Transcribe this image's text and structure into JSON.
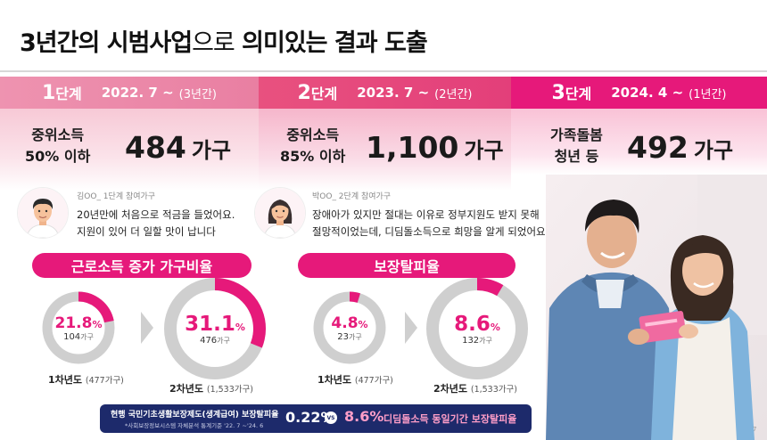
{
  "title": {
    "bold": "3년간의 시범사업",
    "light": "으로",
    "bold2": " 의미있는 결과 도출"
  },
  "stages": [
    {
      "num": "1",
      "sub": "단계",
      "date": "2022. 7 ~",
      "duration": "(3년간)",
      "cond_line1": "중위소득",
      "cond_pct": "50%",
      "cond_rest": " 이하",
      "count": "484",
      "unit": "가구",
      "color": "#ec8aa8"
    },
    {
      "num": "2",
      "sub": "단계",
      "date": "2023. 7 ~",
      "duration": "(2년간)",
      "cond_line1": "중위소득",
      "cond_pct": "85%",
      "cond_rest": " 이하",
      "count": "1,100",
      "unit": "가구",
      "color": "#e0457f"
    },
    {
      "num": "3",
      "sub": "단계",
      "date": "2024. 4 ~",
      "duration": "(1년간)",
      "cond_line1": "가족돌봄",
      "cond_line2": "청년 등",
      "count": "492",
      "unit": "가구",
      "color": "#e6197a"
    }
  ],
  "testimonials": [
    {
      "tag": "김OO_ 1단계 참여가구",
      "line1": "20년만에 처음으로 적금을 들었어요.",
      "line2": "지원이 있어 더 일할 맛이 납니다"
    },
    {
      "tag": "박OO_ 2단계 참여가구",
      "line1": "장애아가 있지만 절대는 이유로 정부지원도 받지 못해",
      "line2": "절망적이었는데, 디딤돌소득으로 희망을 알게 되었어요"
    }
  ],
  "sections": [
    {
      "label": "근로소득 증가 가구비율"
    },
    {
      "label": "보장탈피율"
    }
  ],
  "donuts": [
    {
      "pct_value": 21.8,
      "pct": "21.8",
      "sign": "%",
      "households": "104",
      "hh_unit": "가구",
      "year": "1차년도",
      "year_paren": "(477가구)"
    },
    {
      "pct_value": 31.1,
      "pct": "31.1",
      "sign": "%",
      "households": "476",
      "hh_unit": "가구",
      "year": "2차년도",
      "year_paren": "(1,533가구)"
    },
    {
      "pct_value": 4.8,
      "pct": "4.8",
      "sign": "%",
      "households": "23",
      "hh_unit": "가구",
      "year": "1차년도",
      "year_paren": "(477가구)"
    },
    {
      "pct_value": 8.6,
      "pct": "8.6",
      "sign": "%",
      "households": "132",
      "hh_unit": "가구",
      "year": "2차년도",
      "year_paren": "(1,533가구)"
    }
  ],
  "footer": {
    "line1": "현행 국민기초생활보장제도(생계급여) 보장탈피율",
    "line2": "*사회보장정보시스템 자체분석 통계기준 '22. 7 ~'24. 6",
    "value1": "0.22%",
    "vs": "VS",
    "value2": "8.6%",
    "desc": "디딤돌소득 동일기간 보장탈피율"
  },
  "page_number": "7",
  "colors": {
    "accent": "#e6197a",
    "track": "#cfcfcf",
    "navy": "#1d2a6b"
  }
}
